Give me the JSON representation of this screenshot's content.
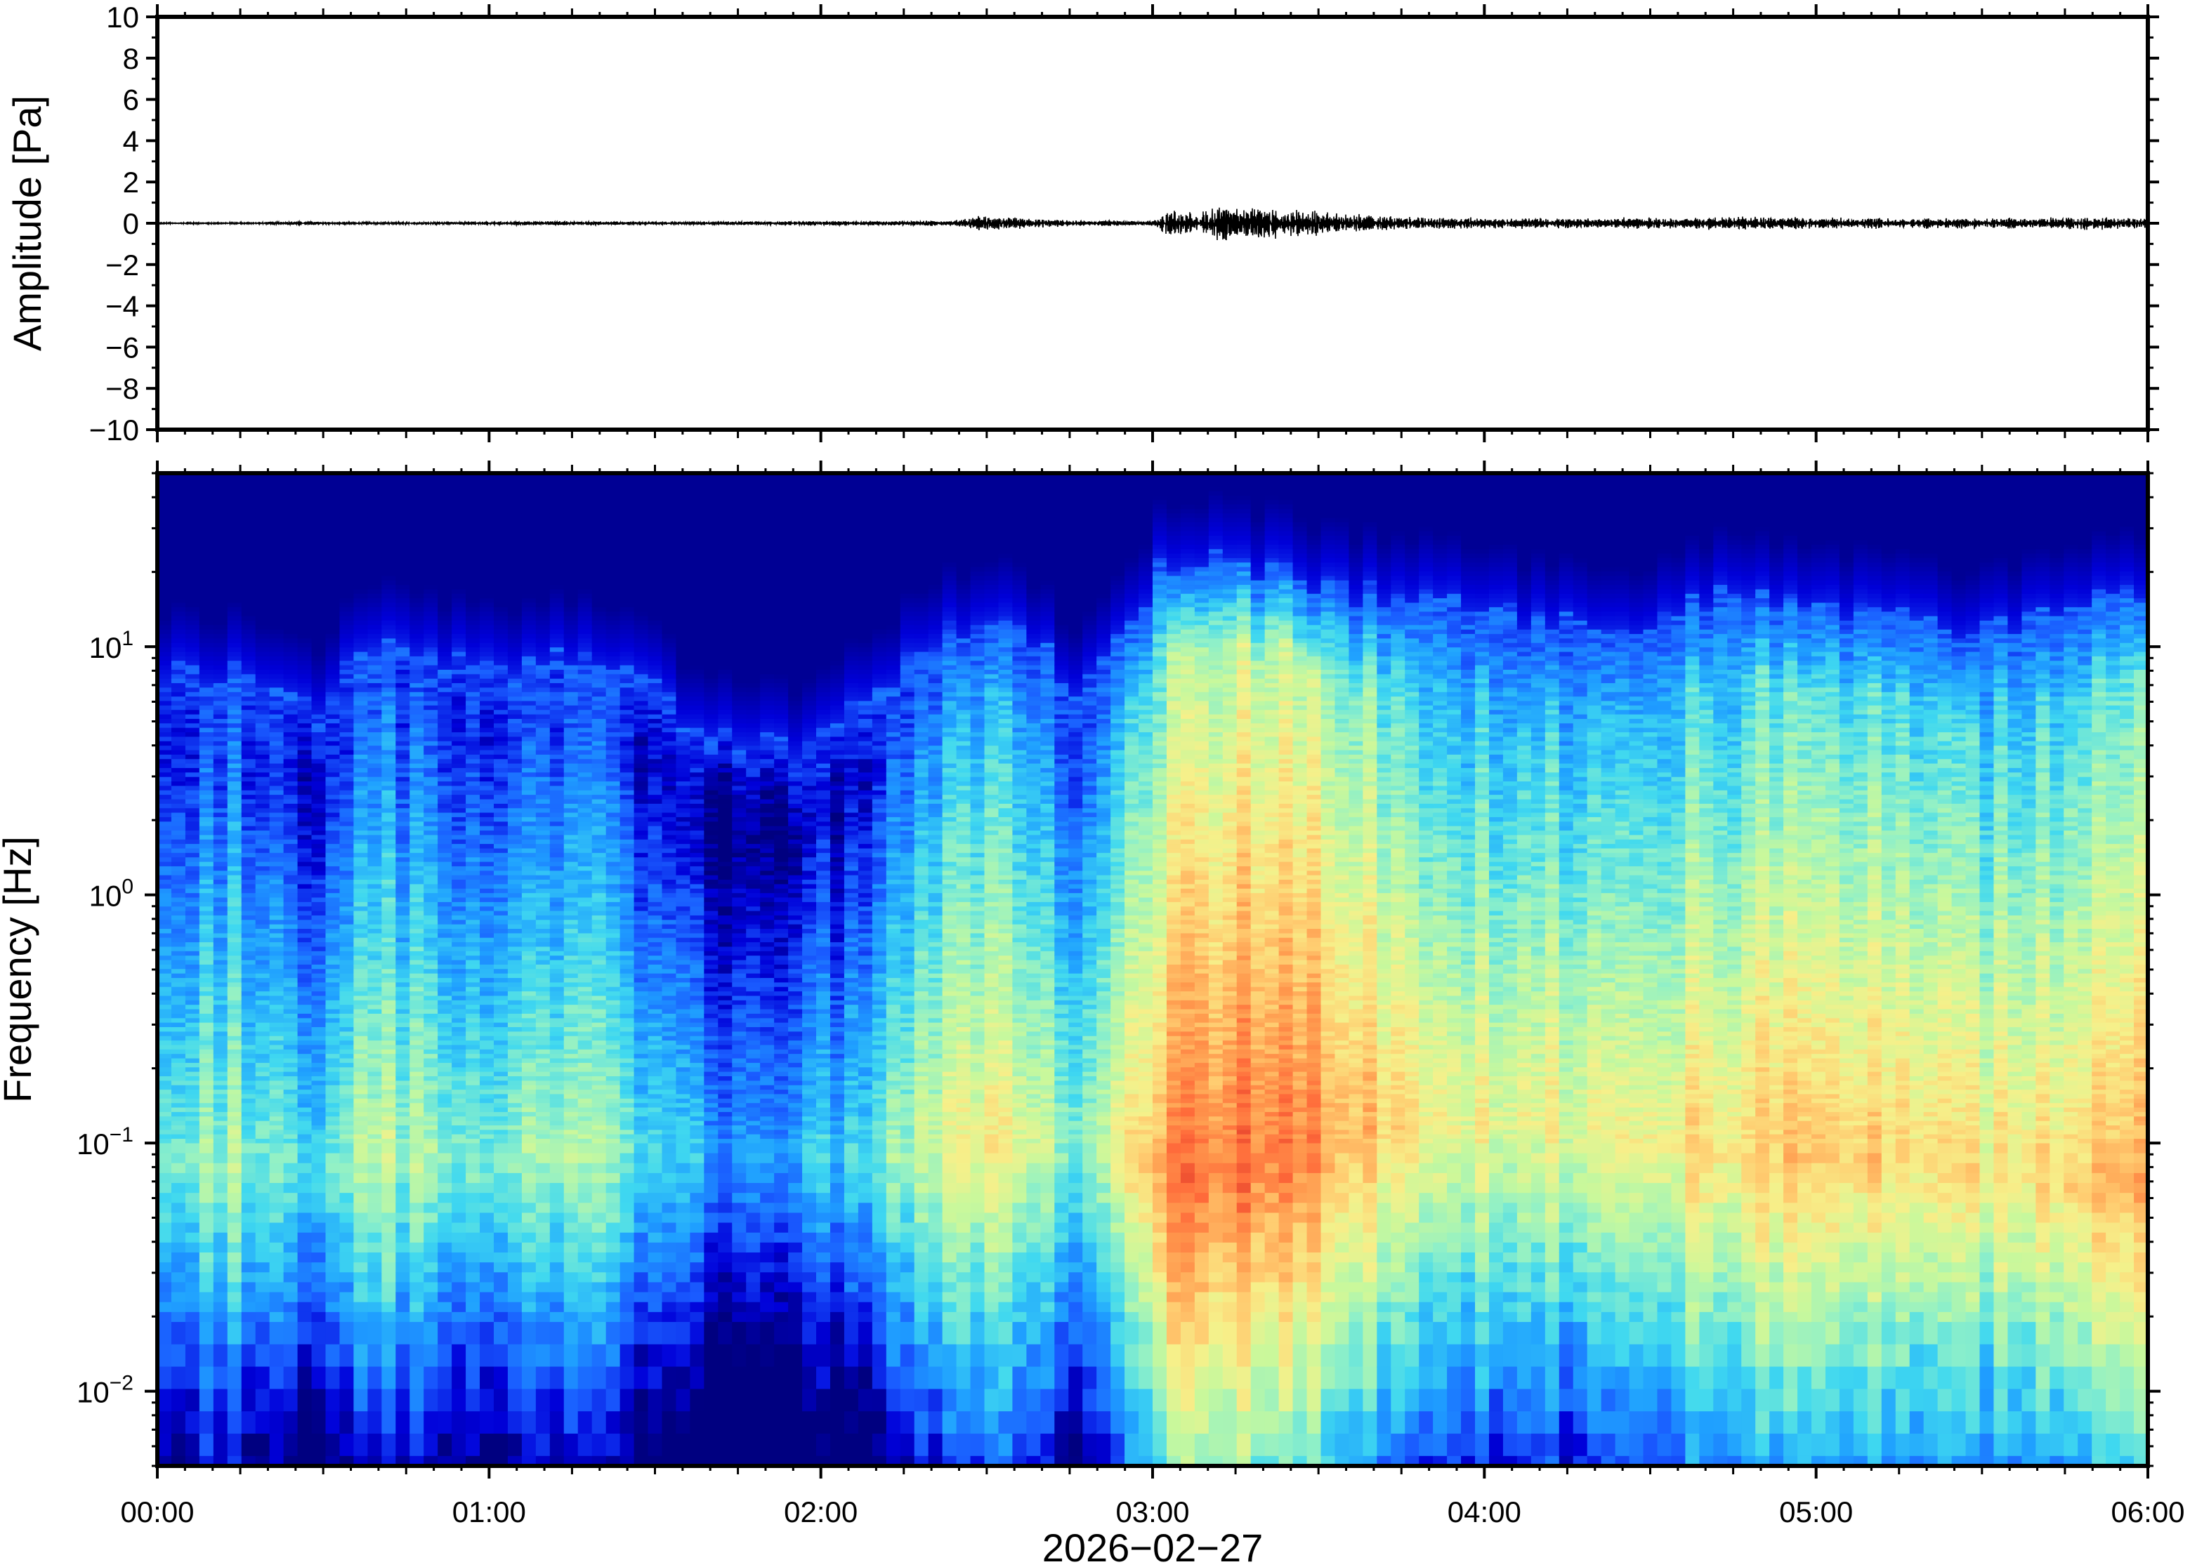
{
  "chart_data": [
    {
      "type": "line",
      "ylabel": "Amplitude [Pa]",
      "ylim": [
        -10,
        10
      ],
      "yticks": [
        "10",
        "8",
        "6",
        "4",
        "2",
        "0",
        "−2",
        "−4",
        "−6",
        "−8",
        "−10"
      ],
      "ytick_values": [
        10,
        8,
        6,
        4,
        2,
        0,
        -2,
        -4,
        -6,
        -8,
        -10
      ],
      "xlim": [
        "00:00",
        "06:00"
      ],
      "series": [
        {
          "x_hours": [
            0.0,
            0.3,
            0.45,
            0.6,
            0.9,
            1.2,
            1.5,
            1.8,
            2.1,
            2.4,
            2.5,
            2.6,
            2.75,
            3.0,
            3.05,
            3.1,
            3.2,
            3.3,
            3.4,
            3.5,
            3.6,
            3.8,
            4.0,
            4.3,
            4.6,
            4.8,
            5.0,
            5.3,
            5.6,
            5.8,
            6.0
          ],
          "envelope": [
            0.05,
            0.05,
            0.12,
            0.06,
            0.07,
            0.12,
            0.08,
            0.1,
            0.12,
            0.15,
            0.45,
            0.3,
            0.15,
            0.15,
            0.8,
            0.7,
            0.9,
            1.0,
            0.8,
            0.7,
            0.5,
            0.35,
            0.3,
            0.28,
            0.32,
            0.4,
            0.3,
            0.28,
            0.3,
            0.35,
            0.3
          ]
        }
      ]
    },
    {
      "type": "heatmap",
      "xlabel": "2026−02−27",
      "ylabel": "Frequency [Hz]",
      "yscale": "log",
      "ylim": [
        0.005,
        50
      ],
      "xlim": [
        0,
        6
      ],
      "xticks": [
        "00:00",
        "01:00",
        "02:00",
        "03:00",
        "04:00",
        "05:00",
        "06:00"
      ],
      "xtick_values": [
        0,
        1,
        2,
        3,
        4,
        5,
        6
      ],
      "yticks": [
        {
          "base": "10",
          "exp": "1",
          "value": 10
        },
        {
          "base": "10",
          "exp": "0",
          "value": 1
        },
        {
          "base": "10",
          "exp": "−1",
          "value": 0.1
        },
        {
          "base": "10",
          "exp": "−2",
          "value": 0.01
        }
      ],
      "colormap": [
        "#000080",
        "#0000d9",
        "#1a5cff",
        "#1fa0ff",
        "#3fd8f0",
        "#8ff0c8",
        "#c8f89c",
        "#f6f08a",
        "#ffcc70",
        "#ff9a4e",
        "#ff6a3a",
        "#e03a2a"
      ],
      "time_hours": [
        0.0,
        0.25,
        0.5,
        0.62,
        0.75,
        1.0,
        1.25,
        1.4,
        1.6,
        1.75,
        2.0,
        2.2,
        2.4,
        2.6,
        2.75,
        2.9,
        3.05,
        3.25,
        3.5,
        3.75,
        4.0,
        4.25,
        4.5,
        4.75,
        5.0,
        5.25,
        5.5,
        5.75,
        6.0
      ],
      "noise_top_hz": [
        8,
        8,
        6,
        10,
        10,
        8,
        9,
        8,
        5,
        4,
        4,
        7,
        12,
        13,
        6,
        10,
        22,
        22,
        18,
        16,
        14,
        13,
        13,
        16,
        14,
        13,
        12,
        13,
        18
      ],
      "peak_power": [
        0.45,
        0.5,
        0.35,
        0.55,
        0.5,
        0.48,
        0.5,
        0.45,
        0.3,
        0.28,
        0.32,
        0.45,
        0.6,
        0.62,
        0.45,
        0.6,
        0.85,
        0.9,
        0.85,
        0.7,
        0.62,
        0.62,
        0.65,
        0.7,
        0.72,
        0.68,
        0.65,
        0.7,
        0.75
      ],
      "peak_frequency_hz": [
        0.08,
        0.08,
        0.08,
        0.09,
        0.09,
        0.09,
        0.09,
        0.09,
        0.09,
        0.09,
        0.09,
        0.09,
        0.1,
        0.1,
        0.1,
        0.1,
        0.06,
        0.08,
        0.1,
        0.12,
        0.12,
        0.12,
        0.1,
        0.09,
        0.09,
        0.09,
        0.08,
        0.07,
        0.07
      ]
    }
  ]
}
